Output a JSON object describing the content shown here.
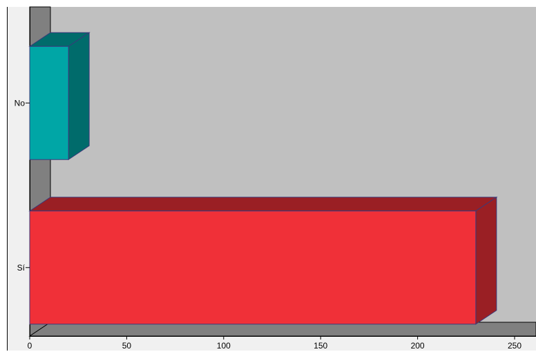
{
  "chart_data": {
    "type": "bar",
    "orientation": "horizontal",
    "style": "3d",
    "categories": [
      "No",
      "Sí"
    ],
    "values": [
      20,
      230
    ],
    "bar_colors": [
      "#00a6a6",
      "#f03038"
    ],
    "bar_side_colors": [
      "#006b6b",
      "#9a1f24"
    ],
    "xlim": [
      0,
      260
    ],
    "xticks": [
      0,
      50,
      100,
      150,
      200,
      250
    ],
    "title": "",
    "xlabel": "",
    "ylabel": "",
    "grid": false,
    "wall_color": "#c0c0c0",
    "side_wall_color": "#808080",
    "floor_color": "#808080"
  }
}
